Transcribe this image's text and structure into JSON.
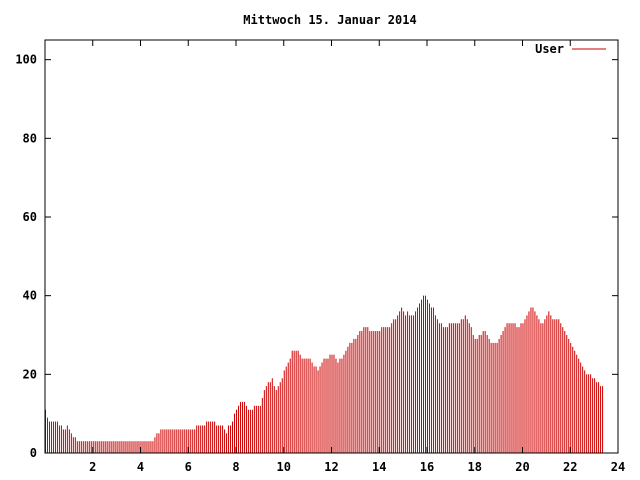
{
  "chart_data": {
    "type": "bar",
    "title": "Mittwoch 15. Januar 2014",
    "xlabel": "",
    "ylabel": "",
    "xlim": [
      0,
      24
    ],
    "ylim": [
      0,
      105
    ],
    "x_ticks": [
      2,
      4,
      6,
      8,
      10,
      12,
      14,
      16,
      18,
      20,
      22,
      24
    ],
    "x_tick_labels": [
      "2",
      "4",
      "6",
      "8",
      "10",
      "12",
      "14",
      "16",
      "18",
      "20",
      "22",
      "24"
    ],
    "y_ticks": [
      0,
      20,
      40,
      60,
      80,
      100
    ],
    "y_tick_labels": [
      "0",
      "20",
      "40",
      "60",
      "80",
      "100"
    ],
    "grid": false,
    "legend_position": "top-right",
    "colors": {
      "series": "#cc0000",
      "axis": "#000000",
      "background": "#ffffff"
    },
    "series": [
      {
        "name": "User",
        "x_start": 0,
        "x_step": 0.08333,
        "values": [
          11,
          9,
          8,
          8,
          8,
          8,
          8,
          7,
          7,
          6,
          6,
          7,
          6,
          5,
          4,
          4,
          3,
          3,
          3,
          3,
          3,
          3,
          3,
          3,
          3,
          3,
          3,
          3,
          3,
          3,
          3,
          3,
          3,
          3,
          3,
          3,
          3,
          3,
          3,
          3,
          3,
          3,
          3,
          3,
          3,
          3,
          3,
          3,
          3,
          3,
          3,
          3,
          3,
          3,
          3,
          4,
          5,
          5,
          6,
          6,
          6,
          6,
          6,
          6,
          6,
          6,
          6,
          6,
          6,
          6,
          6,
          6,
          6,
          6,
          6,
          6,
          7,
          7,
          7,
          7,
          7,
          8,
          8,
          8,
          8,
          8,
          7,
          7,
          7,
          7,
          6,
          5,
          7,
          7,
          8,
          10,
          11,
          12,
          13,
          13,
          13,
          12,
          11,
          11,
          11,
          12,
          12,
          12,
          12,
          14,
          16,
          17,
          18,
          18,
          19,
          17,
          16,
          17,
          18,
          19,
          21,
          22,
          23,
          24,
          26,
          26,
          26,
          26,
          25,
          24,
          24,
          24,
          24,
          24,
          23,
          22,
          22,
          21,
          22,
          23,
          24,
          24,
          24,
          25,
          25,
          25,
          24,
          23,
          24,
          24,
          25,
          26,
          27,
          28,
          28,
          29,
          29,
          30,
          31,
          31,
          32,
          32,
          32,
          31,
          31,
          31,
          31,
          31,
          31,
          32,
          32,
          32,
          32,
          32,
          33,
          34,
          34,
          35,
          36,
          37,
          36,
          35,
          36,
          35,
          35,
          35,
          36,
          37,
          38,
          39,
          40,
          40,
          39,
          38,
          37,
          37,
          35,
          34,
          33,
          33,
          32,
          32,
          32,
          33,
          33,
          33,
          33,
          33,
          33,
          34,
          34,
          35,
          34,
          33,
          32,
          30,
          29,
          29,
          30,
          30,
          31,
          31,
          30,
          29,
          28,
          28,
          28,
          28,
          29,
          30,
          31,
          32,
          33,
          33,
          33,
          33,
          33,
          32,
          32,
          33,
          33,
          34,
          35,
          36,
          37,
          37,
          36,
          35,
          34,
          33,
          33,
          34,
          35,
          36,
          35,
          34,
          34,
          34,
          34,
          33,
          32,
          31,
          30,
          29,
          28,
          27,
          26,
          25,
          24,
          23,
          22,
          21,
          20,
          20,
          20,
          19,
          19,
          18,
          18,
          17,
          17
        ]
      }
    ]
  }
}
